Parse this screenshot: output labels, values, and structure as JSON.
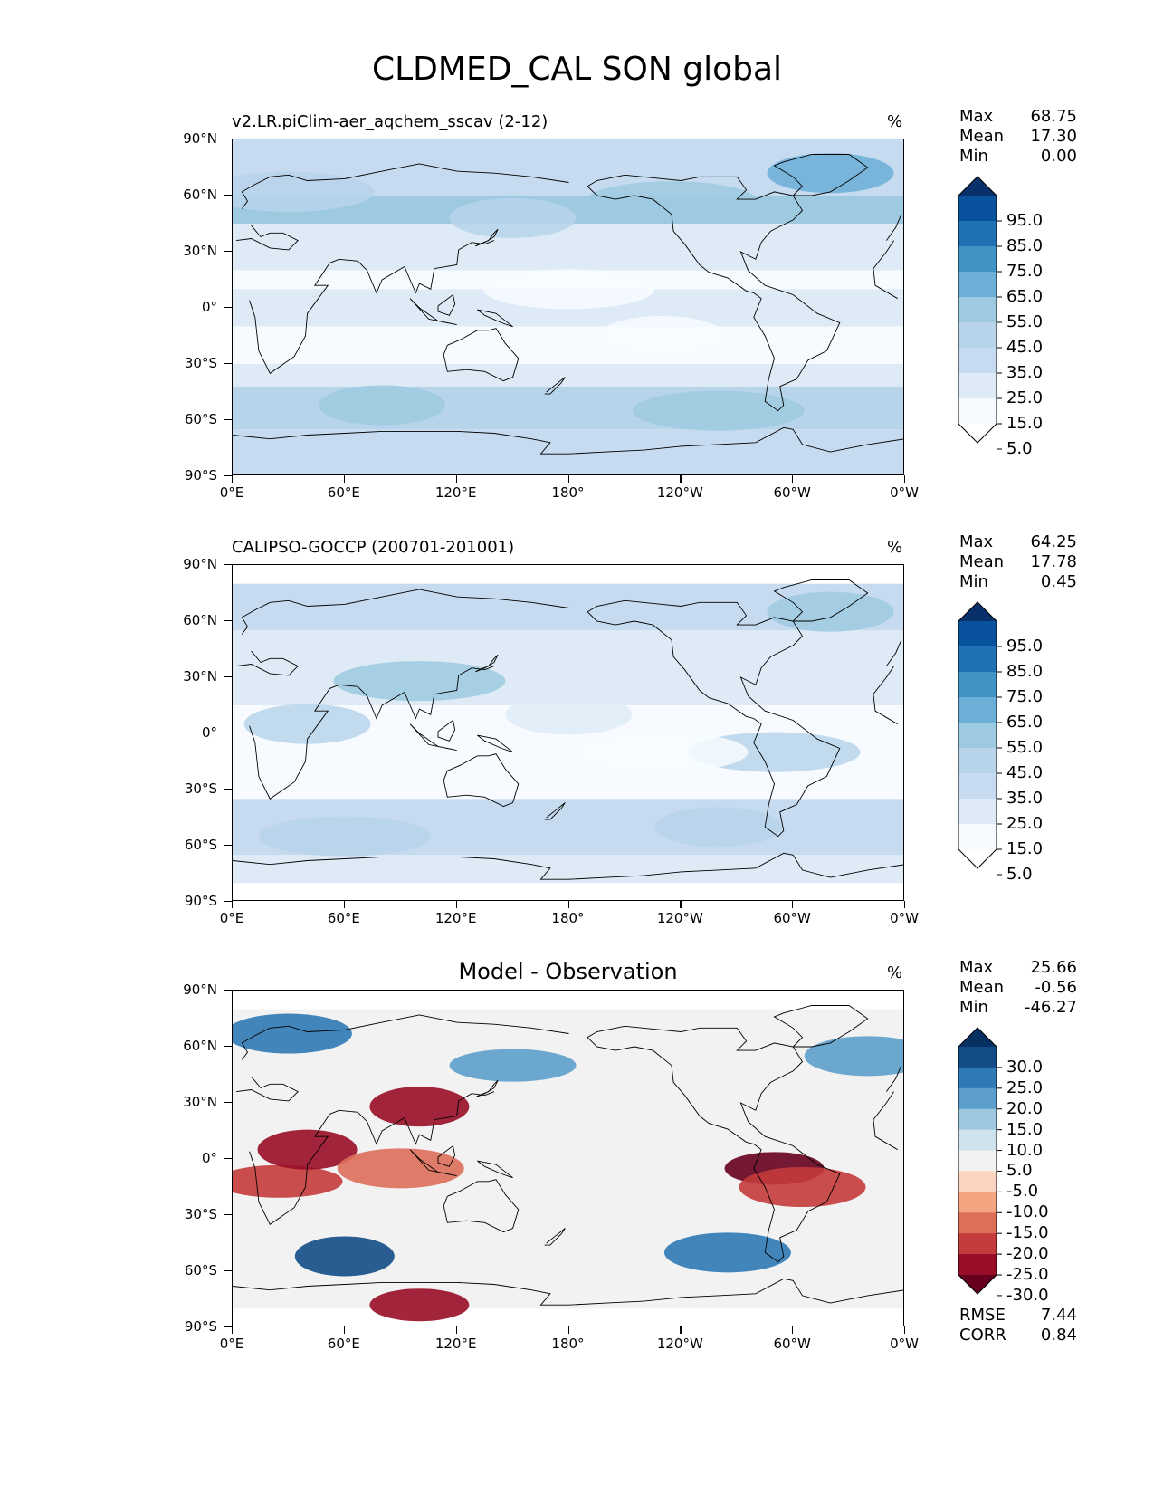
{
  "title": "CLDMED_CAL SON global",
  "units": "%",
  "x_ticks": [
    "0°E",
    "60°E",
    "120°E",
    "180°",
    "120°W",
    "60°W",
    "0°W"
  ],
  "y_ticks": [
    "90°N",
    "60°N",
    "30°N",
    "0°",
    "30°S",
    "60°S",
    "90°S"
  ],
  "stat_labels": {
    "max": "Max",
    "mean": "Mean",
    "min": "Min",
    "rmse": "RMSE",
    "corr": "CORR"
  },
  "panels": [
    {
      "title": "v2.LR.piClim-aer_aqchem_sscav (2-12)",
      "title_style": "left",
      "stats": {
        "max": "68.75",
        "mean": "17.30",
        "min": "0.00"
      },
      "colorbar": {
        "labels": [
          "95.0",
          "85.0",
          "75.0",
          "65.0",
          "55.0",
          "45.0",
          "35.0",
          "25.0",
          "15.0",
          "5.0"
        ],
        "colors": [
          "#08306b",
          "#08519c",
          "#2171b5",
          "#4292c6",
          "#6baed6",
          "#9ecae1",
          "#b7d4ea",
          "#c6dbef",
          "#deebf7",
          "#f7fbff",
          "#ffffff"
        ]
      }
    },
    {
      "title": "CALIPSO-GOCCP (200701-201001)",
      "title_style": "left",
      "stats": {
        "max": "64.25",
        "mean": "17.78",
        "min": "0.45"
      },
      "colorbar": {
        "labels": [
          "95.0",
          "85.0",
          "75.0",
          "65.0",
          "55.0",
          "45.0",
          "35.0",
          "25.0",
          "15.0",
          "5.0"
        ],
        "colors": [
          "#08306b",
          "#08519c",
          "#2171b5",
          "#4292c6",
          "#6baed6",
          "#9ecae1",
          "#b7d4ea",
          "#c6dbef",
          "#deebf7",
          "#f7fbff",
          "#ffffff"
        ]
      }
    },
    {
      "title": "Model - Observation",
      "title_style": "center",
      "stats": {
        "max": "25.66",
        "mean": "-0.56",
        "min": "-46.27"
      },
      "error_stats": {
        "rmse": "7.44",
        "corr": "0.84"
      },
      "colorbar": {
        "labels": [
          "30.0",
          "25.0",
          "20.0",
          "15.0",
          "10.0",
          "5.0",
          "-5.0",
          "-10.0",
          "-15.0",
          "-20.0",
          "-25.0",
          "-30.0"
        ],
        "colors": [
          "#053061",
          "#134c87",
          "#2f79b5",
          "#5c9ecb",
          "#9dc8e0",
          "#cfe3ee",
          "#f2f2f2",
          "#fbd4bf",
          "#f3a481",
          "#dd6e5a",
          "#c33b3a",
          "#980d27",
          "#67001f"
        ]
      }
    }
  ],
  "chart_data": [
    {
      "type": "heatmap",
      "title": "v2.LR.piClim-aer_aqchem_sscav (2-12)",
      "variable": "CLDMED_CAL",
      "season": "SON",
      "units": "%",
      "x_ticks": [
        "0°E",
        "60°E",
        "120°E",
        "180°",
        "120°W",
        "60°W",
        "0°W"
      ],
      "y_ticks": [
        "90°N",
        "60°N",
        "30°N",
        "0°",
        "30°S",
        "60°S",
        "90°S"
      ],
      "levels": [
        5,
        15,
        25,
        35,
        45,
        55,
        65,
        75,
        85,
        95
      ],
      "stats": {
        "max": 68.75,
        "mean": 17.3,
        "min": 0.0
      },
      "features": [
        {
          "lon": 260,
          "lat": -55,
          "value": 45
        },
        {
          "lon": 80,
          "lat": -52,
          "value": 45
        },
        {
          "lon": 235,
          "lat": 57,
          "value": 45
        },
        {
          "lon": 320,
          "lat": 72,
          "value": 55
        },
        {
          "lon": 30,
          "lat": 62,
          "value": 35
        },
        {
          "lon": 150,
          "lat": 48,
          "value": 35
        },
        {
          "lon": 180,
          "lat": 10,
          "value": 5
        },
        {
          "lon": 230,
          "lat": -15,
          "value": 5
        }
      ]
    },
    {
      "type": "heatmap",
      "title": "CALIPSO-GOCCP (200701-201001)",
      "variable": "CLDMED_CAL",
      "season": "SON",
      "units": "%",
      "x_ticks": [
        "0°E",
        "60°E",
        "120°E",
        "180°",
        "120°W",
        "60°W",
        "0°W"
      ],
      "y_ticks": [
        "90°N",
        "60°N",
        "30°N",
        "0°",
        "30°S",
        "60°S",
        "90°S"
      ],
      "levels": [
        5,
        15,
        25,
        35,
        45,
        55,
        65,
        75,
        85,
        95
      ],
      "stats": {
        "max": 64.25,
        "mean": 17.78,
        "min": 0.45
      },
      "features": [
        {
          "lon": 100,
          "lat": 28,
          "value": 45
        },
        {
          "lon": 320,
          "lat": 65,
          "value": 45
        },
        {
          "lon": 290,
          "lat": -10,
          "value": 35
        },
        {
          "lon": 40,
          "lat": 5,
          "value": 35
        },
        {
          "lon": 60,
          "lat": -55,
          "value": 35
        },
        {
          "lon": 260,
          "lat": -50,
          "value": 35
        },
        {
          "lon": 230,
          "lat": -10,
          "value": 5
        },
        {
          "lon": 180,
          "lat": 10,
          "value": 15
        }
      ]
    },
    {
      "type": "heatmap",
      "title": "Model - Observation",
      "variable": "CLDMED_CAL difference",
      "season": "SON",
      "units": "%",
      "x_ticks": [
        "0°E",
        "60°E",
        "120°E",
        "180°",
        "120°W",
        "60°W",
        "0°W"
      ],
      "y_ticks": [
        "90°N",
        "60°N",
        "30°N",
        "0°",
        "30°S",
        "60°S",
        "90°S"
      ],
      "levels": [
        -30,
        -25,
        -20,
        -15,
        -10,
        -5,
        5,
        10,
        15,
        20,
        25,
        30
      ],
      "stats": {
        "max": 25.66,
        "mean": -0.56,
        "min": -46.27,
        "rmse": 7.44,
        "corr": 0.84
      },
      "features": [
        {
          "lon": 25,
          "lat": -12,
          "value": -20
        },
        {
          "lon": 40,
          "lat": 5,
          "value": -25
        },
        {
          "lon": 100,
          "lat": 28,
          "value": -25
        },
        {
          "lon": 290,
          "lat": -5,
          "value": -30
        },
        {
          "lon": 305,
          "lat": -15,
          "value": -20
        },
        {
          "lon": 90,
          "lat": -5,
          "value": -15
        },
        {
          "lon": 100,
          "lat": -78,
          "value": -25
        },
        {
          "lon": 60,
          "lat": -52,
          "value": 25
        },
        {
          "lon": 265,
          "lat": -50,
          "value": 20
        },
        {
          "lon": 150,
          "lat": 50,
          "value": 15
        },
        {
          "lon": 30,
          "lat": 67,
          "value": 20
        },
        {
          "lon": 340,
          "lat": 55,
          "value": 15
        }
      ]
    }
  ]
}
